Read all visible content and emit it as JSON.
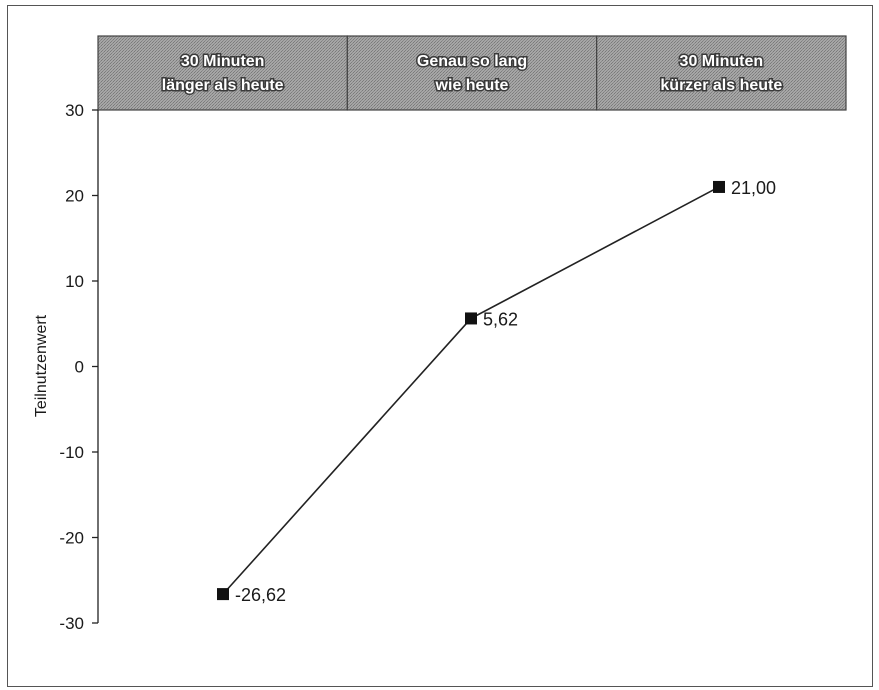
{
  "chart_data": {
    "type": "line",
    "categories": [
      "30 Minuten länger als heute",
      "Genau so lang wie heute",
      "30 Minuten kürzer als heute"
    ],
    "category_header_lines": [
      [
        "30 Minuten",
        "länger als heute"
      ],
      [
        "Genau so lang",
        "wie heute"
      ],
      [
        "30 Minuten",
        "kürzer als heute"
      ]
    ],
    "values": [
      -26.62,
      5.62,
      21.0
    ],
    "data_labels": [
      "-26,62",
      "5,62",
      "21,00"
    ],
    "xlabel": "",
    "ylabel": "Teilnutzenwert",
    "ylim": [
      -30,
      30
    ],
    "yticks": [
      30,
      20,
      10,
      0,
      -10,
      -20,
      -30
    ],
    "grid": false,
    "legend": "none",
    "colors": {
      "line": "#222222",
      "marker": "#111111",
      "header_fill": "#9a9a9a",
      "header_border": "#444444",
      "axis": "#222222"
    }
  }
}
